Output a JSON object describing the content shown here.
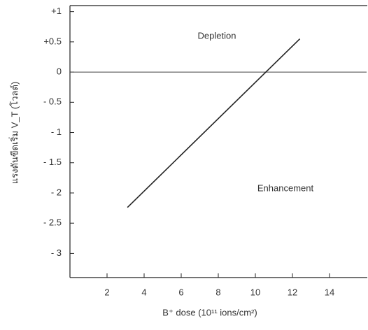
{
  "chart_data": {
    "type": "line",
    "x_label": "B⁺ dose (10¹¹ ions/cm²)",
    "y_label": "แรงดันขีดเริ่ม  V_T (โวลต์)",
    "annotations": [
      "Depletion",
      "Enhancement"
    ],
    "x": [
      3.1,
      12.4
    ],
    "series": [
      {
        "color": "#222222",
        "values": [
          -2.24,
          0.55
        ]
      }
    ],
    "xlim": [
      0,
      16
    ],
    "ylim": [
      -3.4,
      1.1
    ],
    "xticks": [
      2,
      4,
      6,
      8,
      10,
      12,
      14
    ],
    "yticks": [
      {
        "value": 1,
        "label": "+1"
      },
      {
        "value": 0.5,
        "label": "+0.5"
      },
      0,
      {
        "value": -0.5,
        "label": "- 0.5"
      },
      {
        "value": -1,
        "label": "- 1"
      },
      {
        "value": -1.5,
        "label": "- 1.5"
      },
      {
        "value": -2,
        "label": "- 2"
      },
      {
        "value": -2.5,
        "label": "- 2.5"
      },
      {
        "value": -3,
        "label": "- 3"
      }
    ]
  }
}
